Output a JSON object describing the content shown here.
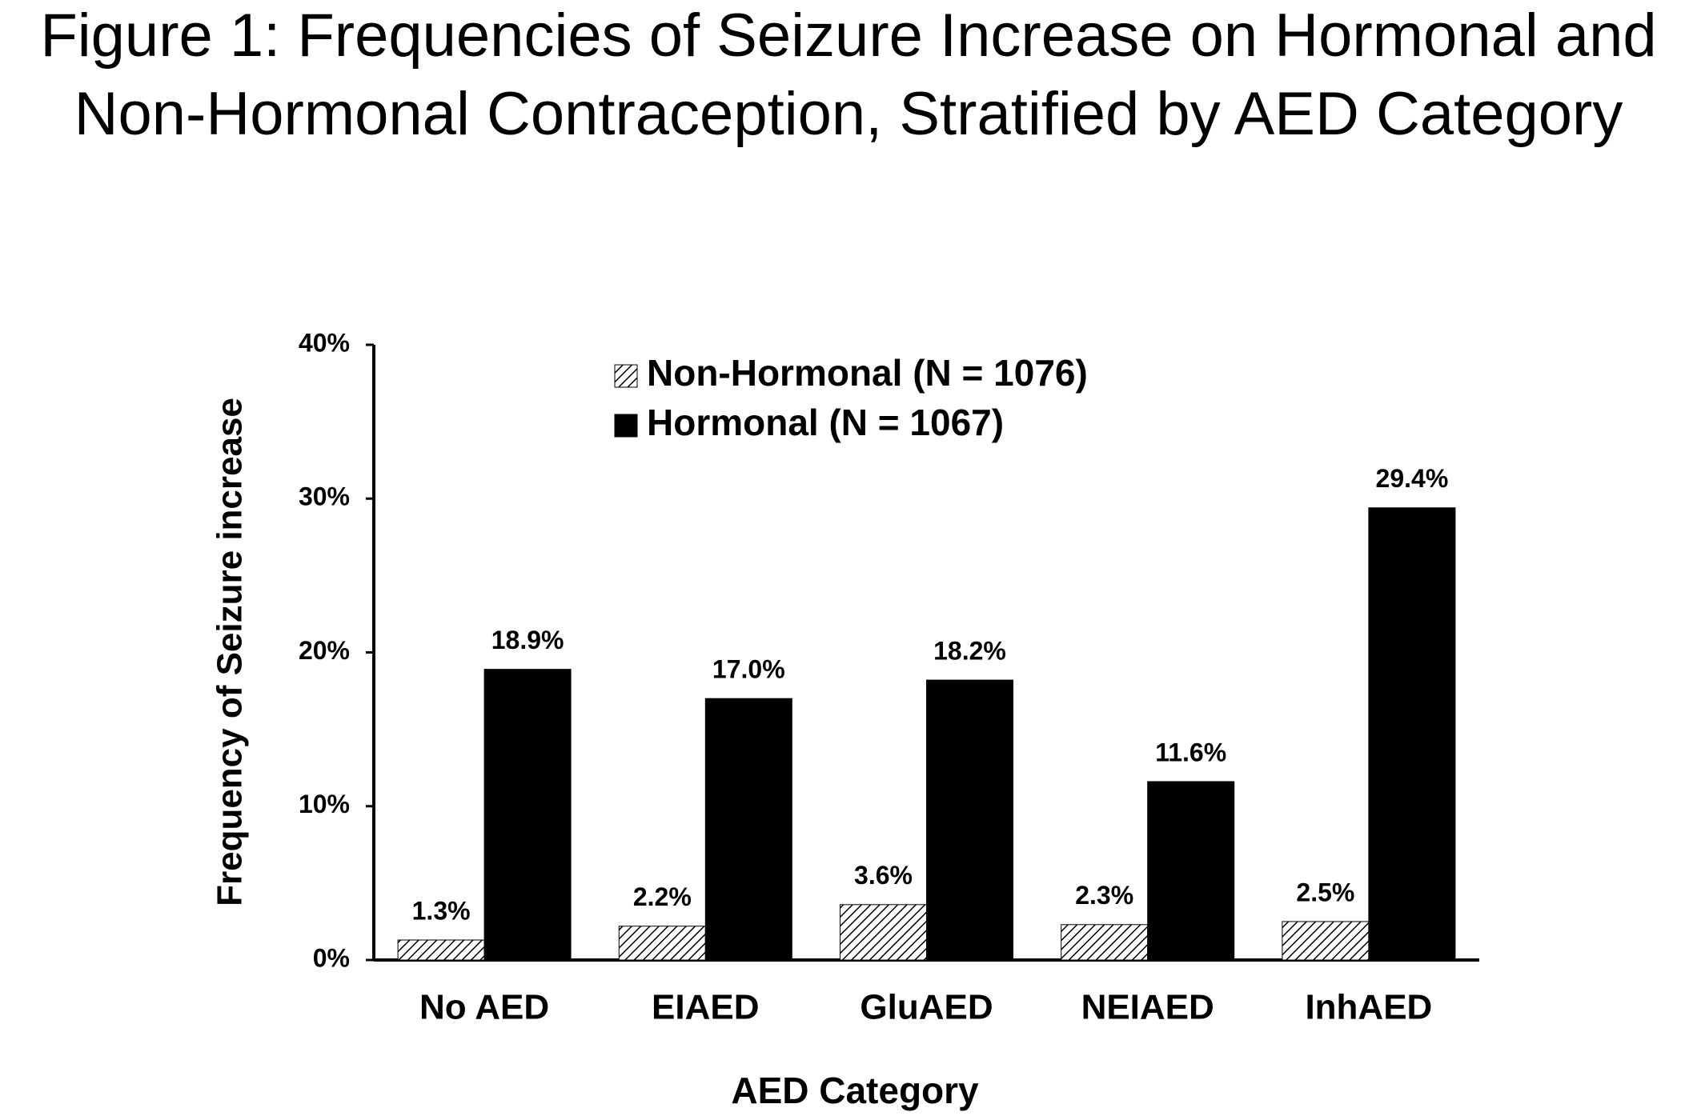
{
  "chart_data": {
    "type": "bar",
    "title": "Figure 1: Frequencies of Seizure Increase on Hormonal and Non-Hormonal Contraception, Stratified by AED Category",
    "x_label": "AED Category",
    "y_label": "Frequency of Seizure increase",
    "categories": [
      "No AED",
      "EIAED",
      "GluAED",
      "NEIAED",
      "InhAED"
    ],
    "series": [
      {
        "name": "Non-Hormonal (N = 1076)",
        "color": "#000000",
        "hatch": true,
        "values": [
          1.3,
          2.2,
          3.6,
          2.3,
          2.5
        ],
        "value_labels": [
          "1.3%",
          "2.2%",
          "3.6%",
          "2.3%",
          "2.5%"
        ]
      },
      {
        "name": "Hormonal (N = 1067)",
        "color": "#000000",
        "hatch": false,
        "values": [
          18.9,
          17.0,
          18.2,
          11.6,
          29.4
        ],
        "value_labels": [
          "18.9%",
          "17.0%",
          "18.2%",
          "11.6%",
          "29.4%"
        ]
      }
    ],
    "ylim": [
      0,
      40
    ],
    "yticks": [
      {
        "value": 0,
        "label": "0%"
      },
      {
        "value": 10,
        "label": "10%"
      },
      {
        "value": 20,
        "label": "20%"
      },
      {
        "value": 30,
        "label": "30%"
      },
      {
        "value": 40,
        "label": "40%"
      }
    ],
    "grid": false,
    "legend": "top"
  }
}
